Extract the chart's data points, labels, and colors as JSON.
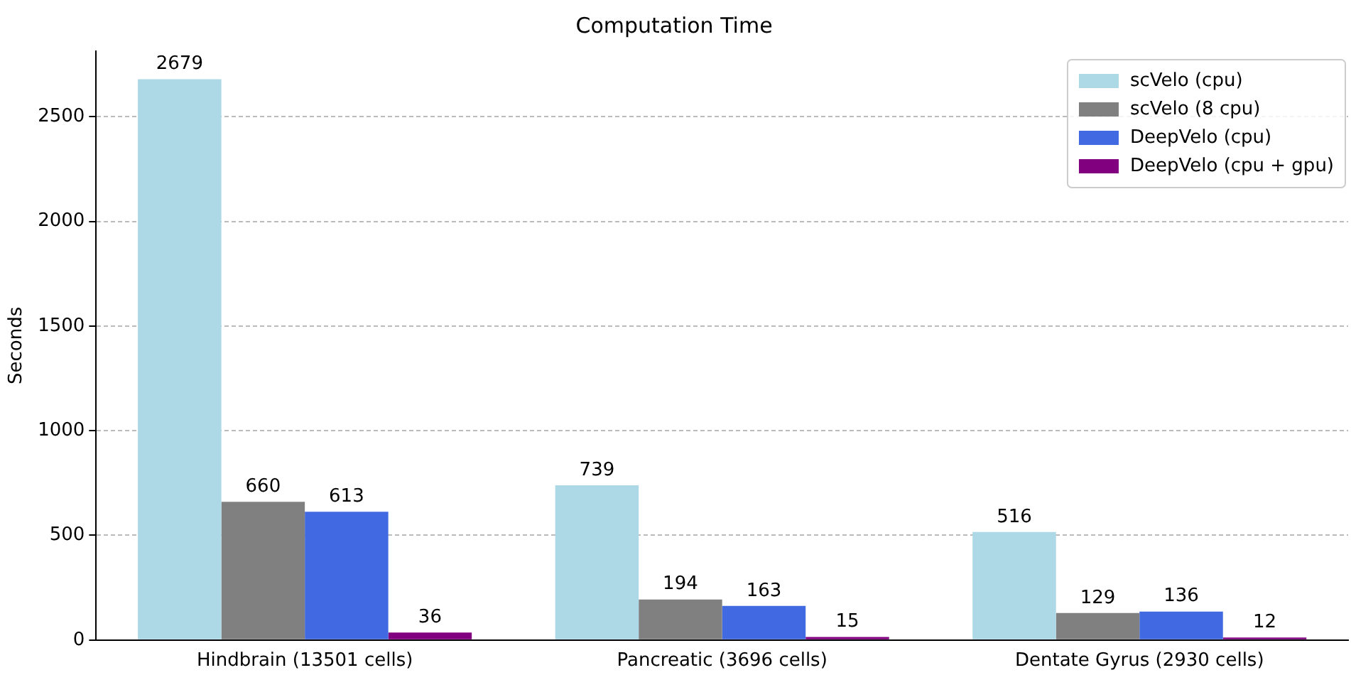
{
  "chart_data": {
    "type": "bar",
    "title": "Computation Time",
    "ylabel": "Seconds",
    "categories": [
      "Hindbrain (13501 cells)",
      "Pancreatic (3696 cells)",
      "Dentate Gyrus (2930 cells)"
    ],
    "series": [
      {
        "name": "scVelo (cpu)",
        "color": "#add8e6",
        "values": [
          2679,
          739,
          516
        ]
      },
      {
        "name": "scVelo (8 cpu)",
        "color": "#808080",
        "values": [
          660,
          194,
          129
        ]
      },
      {
        "name": "DeepVelo (cpu)",
        "color": "#4169e1",
        "values": [
          613,
          163,
          136
        ]
      },
      {
        "name": "DeepVelo (cpu + gpu)",
        "color": "#800080",
        "values": [
          36,
          15,
          12
        ]
      }
    ],
    "ylim": [
      0,
      2813
    ],
    "yticks": [
      0,
      500,
      1000,
      1500,
      2000,
      2500
    ],
    "grid": "y",
    "legend": "top right",
    "data_labels": true
  }
}
